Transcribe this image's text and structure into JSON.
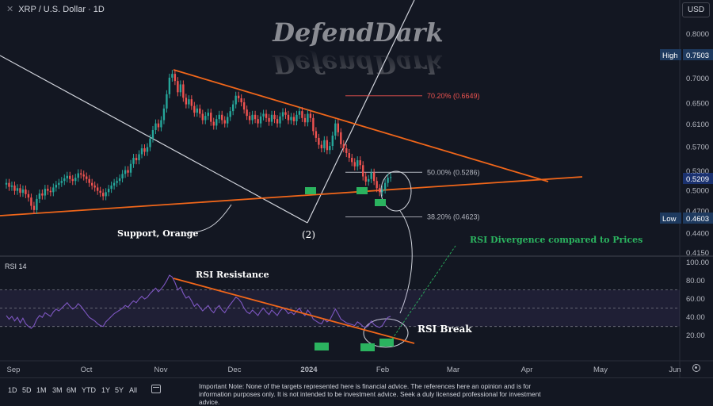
{
  "header": {
    "close_glyph": "✕",
    "symbol": "XRP / U.S. Dollar · 1D",
    "currency": "USD"
  },
  "watermark": "DefendDark",
  "rsi_label": "RSI 14",
  "chart_data": [
    {
      "type": "candlestick",
      "title": "XRP / U.S. Dollar · 1D",
      "y_ticks": [
        "0.8000",
        "0.7500",
        "0.7000",
        "0.6500",
        "0.6100",
        "0.5700",
        "0.5300",
        "0.5000",
        "0.4700",
        "0.4400",
        "0.4150"
      ],
      "ylim": [
        0.41,
        0.85
      ],
      "x_ticks": [
        "Sep",
        "Oct",
        "Nov",
        "Dec",
        "2024",
        "Feb",
        "Mar",
        "Apr",
        "May",
        "Jun"
      ],
      "badges": {
        "high_label": "High",
        "high_value": "0.7503",
        "last_value": "0.5209",
        "low_label": "Low",
        "low_value": "0.4603"
      },
      "fib_levels": [
        {
          "label": "70.20% (0.6649)",
          "value": 0.6649,
          "color": "#ef5350"
        },
        {
          "label": "50.00% (0.5286)",
          "value": 0.5286,
          "color": "#b2b5be"
        },
        {
          "label": "38.20% (0.4623)",
          "value": 0.4623,
          "color": "#b2b5be"
        }
      ],
      "annotations": [
        "Support, Orange",
        "(2)"
      ],
      "close_prices": [
        0.512,
        0.506,
        0.508,
        0.5,
        0.504,
        0.497,
        0.502,
        0.495,
        0.49,
        0.478,
        0.472,
        0.488,
        0.496,
        0.493,
        0.503,
        0.5,
        0.498,
        0.505,
        0.509,
        0.512,
        0.515,
        0.519,
        0.523,
        0.518,
        0.515,
        0.52,
        0.527,
        0.525,
        0.522,
        0.518,
        0.512,
        0.508,
        0.505,
        0.5,
        0.497,
        0.492,
        0.498,
        0.503,
        0.508,
        0.512,
        0.515,
        0.519,
        0.526,
        0.532,
        0.528,
        0.542,
        0.552,
        0.548,
        0.558,
        0.568,
        0.562,
        0.57,
        0.585,
        0.6,
        0.612,
        0.605,
        0.618,
        0.64,
        0.668,
        0.702,
        0.71,
        0.695,
        0.672,
        0.688,
        0.661,
        0.648,
        0.658,
        0.645,
        0.632,
        0.64,
        0.63,
        0.618,
        0.626,
        0.632,
        0.615,
        0.608,
        0.62,
        0.628,
        0.618,
        0.612,
        0.624,
        0.635,
        0.648,
        0.665,
        0.66,
        0.652,
        0.638,
        0.626,
        0.618,
        0.628,
        0.62,
        0.612,
        0.625,
        0.63,
        0.622,
        0.615,
        0.628,
        0.62,
        0.612,
        0.625,
        0.633,
        0.628,
        0.618,
        0.624,
        0.616,
        0.628,
        0.635,
        0.622,
        0.614,
        0.63,
        0.622,
        0.598,
        0.586,
        0.574,
        0.568,
        0.582,
        0.565,
        0.572,
        0.59,
        0.612,
        0.596,
        0.575,
        0.568,
        0.56,
        0.552,
        0.545,
        0.538,
        0.548,
        0.54,
        0.522,
        0.514,
        0.518,
        0.528,
        0.515,
        0.504,
        0.498,
        0.502,
        0.512,
        0.52,
        0.521
      ]
    },
    {
      "type": "line",
      "title": "RSI 14",
      "y_ticks": [
        "100.00",
        "80.00",
        "60.00",
        "40.00",
        "20.00"
      ],
      "ylim": [
        15,
        100
      ],
      "bands": [
        70,
        50,
        30
      ],
      "annotations": [
        "RSI Resistance",
        "RSI Break",
        "RSI Divergence compared to Prices"
      ],
      "values": [
        42,
        38,
        41,
        36,
        40,
        34,
        39,
        33,
        30,
        28,
        31,
        38,
        42,
        40,
        45,
        43,
        41,
        46,
        49,
        47,
        50,
        53,
        56,
        52,
        49,
        51,
        55,
        52,
        48,
        44,
        40,
        38,
        36,
        33,
        31,
        30,
        35,
        38,
        41,
        44,
        46,
        48,
        50,
        53,
        51,
        55,
        58,
        56,
        60,
        63,
        60,
        62,
        66,
        69,
        72,
        68,
        71,
        75,
        80,
        86,
        84,
        78,
        70,
        73,
        66,
        61,
        63,
        58,
        52,
        55,
        51,
        47,
        50,
        53,
        48,
        45,
        50,
        53,
        48,
        45,
        50,
        54,
        58,
        62,
        60,
        56,
        50,
        46,
        44,
        48,
        45,
        42,
        47,
        50,
        46,
        43,
        48,
        45,
        42,
        47,
        50,
        48,
        44,
        46,
        43,
        47,
        50,
        45,
        42,
        48,
        44,
        38,
        36,
        34,
        33,
        38,
        35,
        37,
        43,
        49,
        44,
        38,
        36,
        34,
        33,
        32,
        31,
        35,
        33,
        30,
        29,
        31,
        36,
        32,
        30,
        29,
        31,
        36,
        40,
        41
      ]
    }
  ],
  "footer": {
    "timeframes": [
      "1D",
      "5D",
      "1M",
      "3M",
      "6M",
      "YTD",
      "1Y",
      "5Y",
      "All"
    ],
    "note": "Important Note: None of the targets represented here is financial advice. The references here an opinion and is for information purposes only. It is not intended to be investment advice. Seek a duly licensed professional for investment advice."
  },
  "colors": {
    "bg": "#131722",
    "up": "#26a69a",
    "down": "#ef5350",
    "orange": "#f0661a",
    "rsi": "#7e57c2",
    "cloud": "#b48a9a",
    "green_label": "#2bb35f"
  }
}
